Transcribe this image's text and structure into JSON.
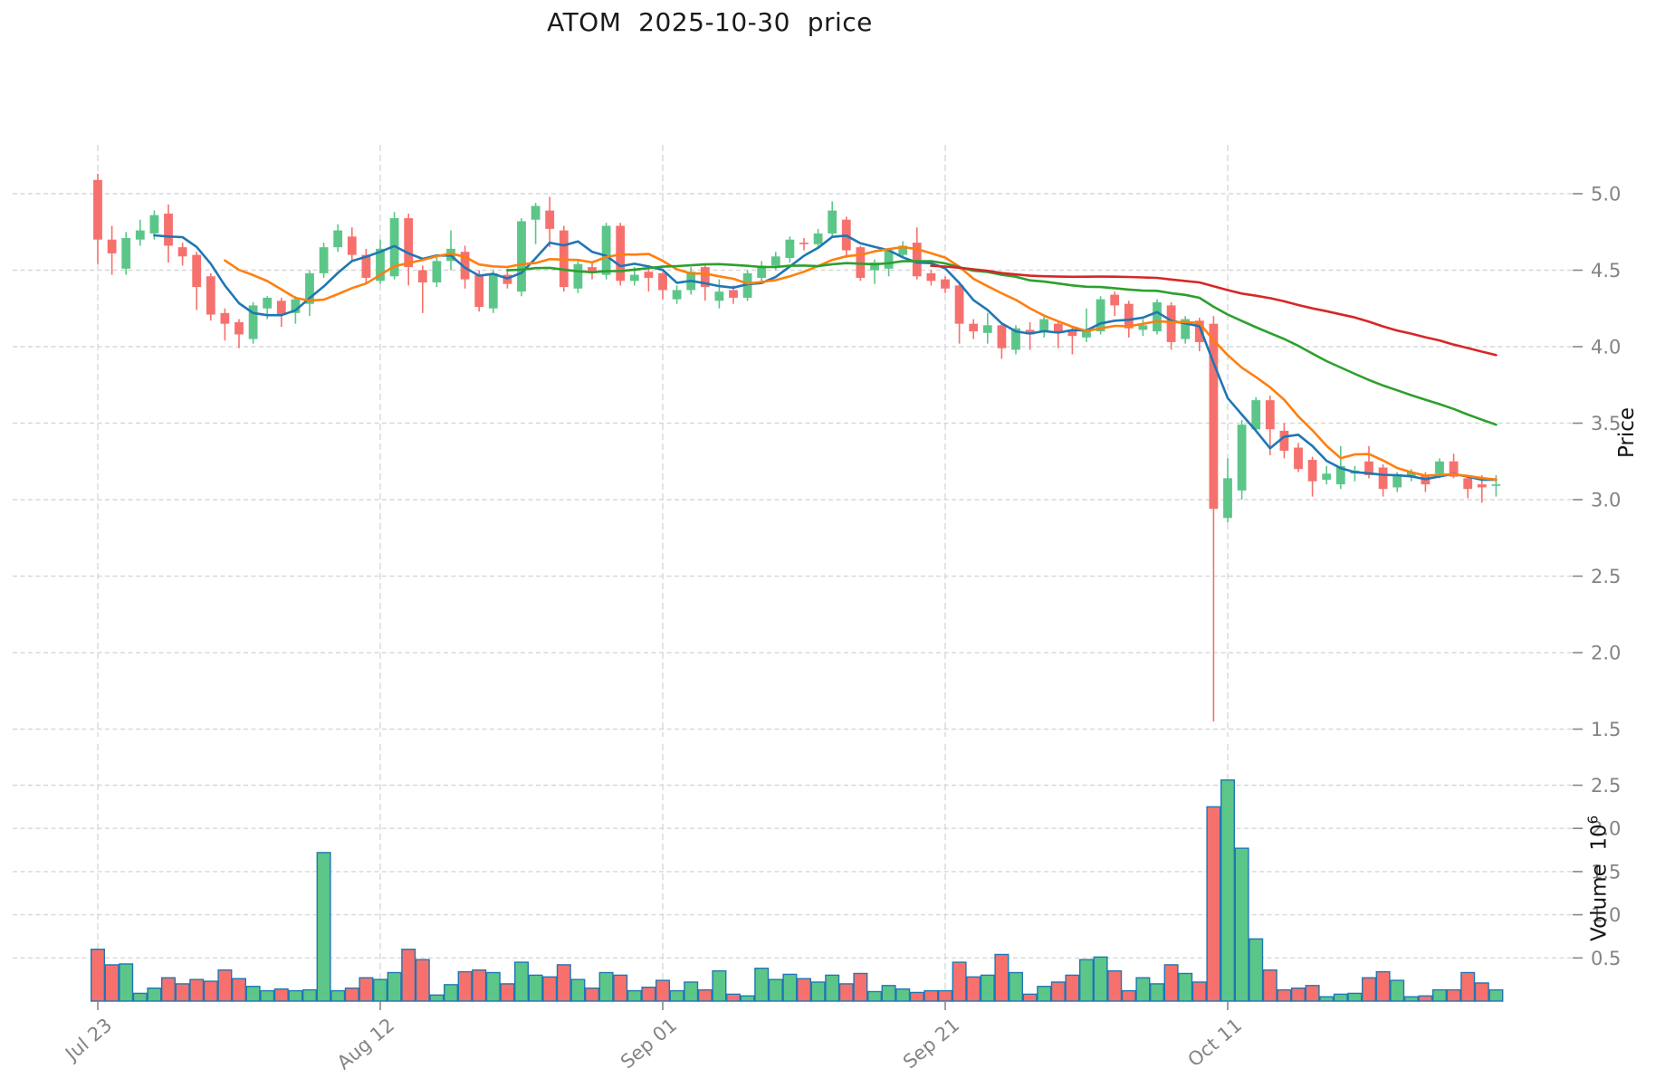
{
  "title": "ATOM  2025-10-30  price",
  "axes": {
    "price_label": "Price",
    "volume_label_base": "Volume  10",
    "volume_label_exp": "6",
    "price_tick_labels": [
      "5.0",
      "4.5",
      "4.0",
      "3.5",
      "3.0",
      "2.5",
      "2.0",
      "1.5"
    ],
    "volume_tick_labels": [
      "2.5",
      "2.0",
      "1.5",
      "1.0",
      "0.5"
    ],
    "x_tick_labels": [
      "Jul 23",
      "Aug 12",
      "Sep 01",
      "Sep 21",
      "Oct 11"
    ]
  },
  "colors": {
    "up": "#5cc689",
    "down": "#f6716d",
    "volume_edge": "#1f77b4",
    "ma5": "#1f77b4",
    "ma10": "#ff7f0e",
    "ma30": "#2ca02c",
    "ma60": "#d62728",
    "grid": "#d8d8d8",
    "tick_text": "#848484",
    "tick_mark": "#888888"
  },
  "chart_data": {
    "type": "candlestick",
    "title": "ATOM  2025-10-30  price",
    "legend_position": "none",
    "grid": true,
    "price_axis": {
      "label": "Price",
      "side": "right",
      "ticks": [
        5.0,
        4.5,
        4.0,
        3.5,
        3.0,
        2.5,
        2.0,
        1.5
      ],
      "range": [
        1.45,
        5.35
      ]
    },
    "volume_axis": {
      "label": "Volume 10^6",
      "side": "right",
      "ticks": [
        2.5,
        2.0,
        1.5,
        1.0,
        0.5
      ],
      "range": [
        0,
        2.8
      ],
      "unit": 1000000
    },
    "x_tick_labels": [
      {
        "index": 0,
        "label": "Jul 23"
      },
      {
        "index": 20,
        "label": "Aug 12"
      },
      {
        "index": 40,
        "label": "Sep 01"
      },
      {
        "index": 60,
        "label": "Sep 21"
      },
      {
        "index": 80,
        "label": "Oct 11"
      }
    ],
    "moving_average_windows": [
      5,
      10,
      30,
      60
    ],
    "ohlcv_desc": "per candle: [open, high, low, close, volume_millions]",
    "ohlcv": [
      [
        5.09,
        5.13,
        4.54,
        4.7,
        0.6
      ],
      [
        4.7,
        4.79,
        4.47,
        4.61,
        0.42
      ],
      [
        4.51,
        4.75,
        4.47,
        4.71,
        0.43
      ],
      [
        4.7,
        4.83,
        4.66,
        4.76,
        0.09
      ],
      [
        4.74,
        4.89,
        4.7,
        4.86,
        0.15
      ],
      [
        4.87,
        4.93,
        4.55,
        4.66,
        0.27
      ],
      [
        4.65,
        4.68,
        4.53,
        4.59,
        0.2
      ],
      [
        4.6,
        4.62,
        4.24,
        4.39,
        0.25
      ],
      [
        4.46,
        4.48,
        4.17,
        4.21,
        0.23
      ],
      [
        4.22,
        4.25,
        4.04,
        4.15,
        0.36
      ],
      [
        4.16,
        4.18,
        3.99,
        4.08,
        0.26
      ],
      [
        4.05,
        4.29,
        4.02,
        4.27,
        0.17
      ],
      [
        4.25,
        4.33,
        4.18,
        4.32,
        0.12
      ],
      [
        4.3,
        4.32,
        4.13,
        4.21,
        0.14
      ],
      [
        4.22,
        4.33,
        4.15,
        4.31,
        0.12
      ],
      [
        4.28,
        4.5,
        4.2,
        4.48,
        0.13
      ],
      [
        4.48,
        4.68,
        4.45,
        4.65,
        1.72
      ],
      [
        4.65,
        4.8,
        4.62,
        4.76,
        0.12
      ],
      [
        4.72,
        4.78,
        4.56,
        4.6,
        0.15
      ],
      [
        4.6,
        4.64,
        4.41,
        4.45,
        0.27
      ],
      [
        4.43,
        4.7,
        4.41,
        4.64,
        0.25
      ],
      [
        4.46,
        4.88,
        4.44,
        4.84,
        0.33
      ],
      [
        4.84,
        4.87,
        4.4,
        4.52,
        0.6
      ],
      [
        4.5,
        4.53,
        4.22,
        4.42,
        0.48
      ],
      [
        4.42,
        4.59,
        4.39,
        4.56,
        0.07
      ],
      [
        4.56,
        4.76,
        4.5,
        4.64,
        0.19
      ],
      [
        4.62,
        4.66,
        4.38,
        4.44,
        0.34
      ],
      [
        4.47,
        4.5,
        4.23,
        4.26,
        0.36
      ],
      [
        4.25,
        4.5,
        4.22,
        4.48,
        0.33
      ],
      [
        4.47,
        4.51,
        4.38,
        4.41,
        0.2
      ],
      [
        4.36,
        4.84,
        4.33,
        4.82,
        0.45
      ],
      [
        4.83,
        4.94,
        4.67,
        4.92,
        0.3
      ],
      [
        4.89,
        4.98,
        4.65,
        4.77,
        0.28
      ],
      [
        4.76,
        4.79,
        4.36,
        4.39,
        0.42
      ],
      [
        4.38,
        4.57,
        4.35,
        4.54,
        0.25
      ],
      [
        4.52,
        4.55,
        4.44,
        4.48,
        0.15
      ],
      [
        4.47,
        4.81,
        4.44,
        4.79,
        0.33
      ],
      [
        4.79,
        4.81,
        4.4,
        4.43,
        0.3
      ],
      [
        4.43,
        4.52,
        4.4,
        4.47,
        0.12
      ],
      [
        4.49,
        4.51,
        4.36,
        4.45,
        0.16
      ],
      [
        4.48,
        4.49,
        4.31,
        4.37,
        0.24
      ],
      [
        4.31,
        4.4,
        4.28,
        4.37,
        0.12
      ],
      [
        4.37,
        4.52,
        4.34,
        4.49,
        0.22
      ],
      [
        4.52,
        4.53,
        4.3,
        4.39,
        0.13
      ],
      [
        4.3,
        4.44,
        4.25,
        4.36,
        0.35
      ],
      [
        4.37,
        4.4,
        4.28,
        4.32,
        0.08
      ],
      [
        4.32,
        4.5,
        4.3,
        4.48,
        0.06
      ],
      [
        4.45,
        4.56,
        4.42,
        4.53,
        0.38
      ],
      [
        4.53,
        4.62,
        4.5,
        4.59,
        0.25
      ],
      [
        4.58,
        4.72,
        4.55,
        4.7,
        0.31
      ],
      [
        4.68,
        4.71,
        4.63,
        4.67,
        0.26
      ],
      [
        4.67,
        4.77,
        4.64,
        4.74,
        0.22
      ],
      [
        4.74,
        4.95,
        4.72,
        4.89,
        0.3
      ],
      [
        4.83,
        4.85,
        4.58,
        4.63,
        0.2
      ],
      [
        4.65,
        4.66,
        4.43,
        4.45,
        0.32
      ],
      [
        4.5,
        4.57,
        4.41,
        4.55,
        0.11
      ],
      [
        4.51,
        4.64,
        4.46,
        4.63,
        0.18
      ],
      [
        4.6,
        4.69,
        4.58,
        4.66,
        0.14
      ],
      [
        4.68,
        4.78,
        4.44,
        4.46,
        0.1
      ],
      [
        4.48,
        4.5,
        4.4,
        4.43,
        0.12
      ],
      [
        4.44,
        4.46,
        4.35,
        4.38,
        0.12
      ],
      [
        4.4,
        4.42,
        4.02,
        4.15,
        0.45
      ],
      [
        4.15,
        4.18,
        4.05,
        4.1,
        0.28
      ],
      [
        4.09,
        4.22,
        4.02,
        4.14,
        0.3
      ],
      [
        4.14,
        4.15,
        3.92,
        3.99,
        0.54
      ],
      [
        3.98,
        4.14,
        3.95,
        4.12,
        0.33
      ],
      [
        4.11,
        4.16,
        3.98,
        4.08,
        0.08
      ],
      [
        4.1,
        4.2,
        4.06,
        4.18,
        0.17
      ],
      [
        4.15,
        4.17,
        3.99,
        4.09,
        0.22
      ],
      [
        4.11,
        4.13,
        3.95,
        4.07,
        0.3
      ],
      [
        4.06,
        4.25,
        4.03,
        4.11,
        0.48
      ],
      [
        4.1,
        4.33,
        4.08,
        4.31,
        0.51
      ],
      [
        4.34,
        4.36,
        4.2,
        4.27,
        0.35
      ],
      [
        4.28,
        4.3,
        4.06,
        4.12,
        0.12
      ],
      [
        4.11,
        4.18,
        4.07,
        4.14,
        0.27
      ],
      [
        4.1,
        4.31,
        4.08,
        4.29,
        0.2
      ],
      [
        4.27,
        4.29,
        3.98,
        4.03,
        0.42
      ],
      [
        4.05,
        4.2,
        4.02,
        4.18,
        0.32
      ],
      [
        4.17,
        4.19,
        3.97,
        4.03,
        0.22
      ],
      [
        4.15,
        4.2,
        1.55,
        2.94,
        2.25
      ],
      [
        2.88,
        3.27,
        2.85,
        3.14,
        2.56
      ],
      [
        3.06,
        3.52,
        3.0,
        3.49,
        1.77
      ],
      [
        3.46,
        3.67,
        3.44,
        3.65,
        0.72
      ],
      [
        3.65,
        3.68,
        3.29,
        3.46,
        0.36
      ],
      [
        3.45,
        3.5,
        3.27,
        3.32,
        0.13
      ],
      [
        3.34,
        3.37,
        3.18,
        3.2,
        0.15
      ],
      [
        3.26,
        3.28,
        3.02,
        3.12,
        0.18
      ],
      [
        3.13,
        3.22,
        3.1,
        3.17,
        0.05
      ],
      [
        3.1,
        3.35,
        3.07,
        3.22,
        0.08
      ],
      [
        3.17,
        3.22,
        3.12,
        3.19,
        0.09
      ],
      [
        3.25,
        3.35,
        3.14,
        3.16,
        0.27
      ],
      [
        3.21,
        3.23,
        3.02,
        3.07,
        0.34
      ],
      [
        3.08,
        3.18,
        3.05,
        3.16,
        0.24
      ],
      [
        3.15,
        3.2,
        3.12,
        3.18,
        0.05
      ],
      [
        3.16,
        3.18,
        3.05,
        3.1,
        0.06
      ],
      [
        3.17,
        3.27,
        3.14,
        3.25,
        0.13
      ],
      [
        3.25,
        3.3,
        3.14,
        3.15,
        0.13
      ],
      [
        3.14,
        3.16,
        3.01,
        3.07,
        0.33
      ],
      [
        3.1,
        3.16,
        2.98,
        3.08,
        0.21
      ],
      [
        3.09,
        3.16,
        3.02,
        3.1,
        0.13
      ]
    ]
  }
}
